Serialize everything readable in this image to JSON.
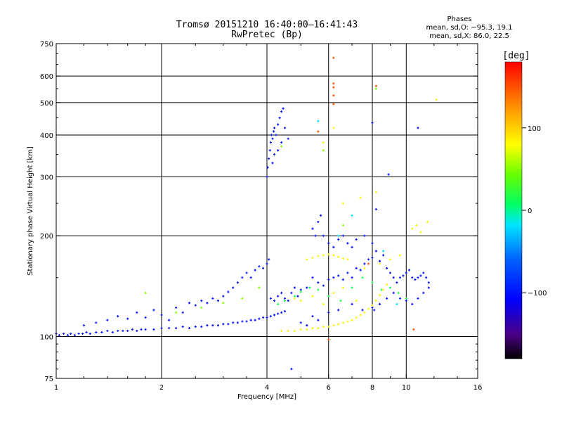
{
  "chart_data": {
    "type": "scatter",
    "title": "Tromsø 20151210 16:40:00–16:41:43",
    "subtitle": "RwPretec (Bp)",
    "xlabel": "Frequency [MHz]",
    "ylabel": "Stationary phase Virtual Height [km]",
    "x_scale": "log",
    "y_scale": "log",
    "xlim": [
      1,
      16
    ],
    "ylim": [
      75,
      750
    ],
    "x_ticks": [
      1,
      2,
      4,
      6,
      8,
      10,
      16
    ],
    "x_tick_labels": [
      "1",
      "2",
      "4",
      "6",
      "8",
      "10",
      "16"
    ],
    "y_ticks": [
      75,
      100,
      200,
      300,
      400,
      500,
      600,
      750
    ],
    "y_tick_labels": [
      "75",
      "100",
      "200",
      "300",
      "400",
      "500",
      "600",
      "750"
    ],
    "grid": true,
    "stats": {
      "header": "Phases",
      "line_o": "mean, sd,O: −95.3, 19.1",
      "line_x": "mean, sd,X: 86.0, 22.5"
    },
    "colorbar": {
      "unit": "[deg]",
      "ticks": [
        100,
        0,
        -100
      ],
      "tick_labels": [
        "100",
        "0",
        "−100"
      ],
      "range": [
        -180,
        180
      ]
    },
    "series": [
      {
        "phase_deg": -100,
        "points": [
          [
            1.0,
            102
          ],
          [
            1.02,
            101
          ],
          [
            1.05,
            102
          ],
          [
            1.08,
            101
          ],
          [
            1.1,
            102
          ],
          [
            1.13,
            101
          ],
          [
            1.16,
            102
          ],
          [
            1.19,
            102
          ],
          [
            1.22,
            103
          ],
          [
            1.25,
            102
          ],
          [
            1.3,
            103
          ],
          [
            1.35,
            103
          ],
          [
            1.4,
            104
          ],
          [
            1.45,
            103
          ],
          [
            1.5,
            104
          ],
          [
            1.55,
            104
          ],
          [
            1.6,
            104
          ],
          [
            1.65,
            105
          ],
          [
            1.7,
            104
          ],
          [
            1.75,
            105
          ],
          [
            1.8,
            105
          ],
          [
            1.9,
            105
          ],
          [
            2.0,
            106
          ],
          [
            2.1,
            106
          ],
          [
            2.2,
            106
          ],
          [
            2.3,
            107
          ],
          [
            2.4,
            106
          ],
          [
            2.5,
            107
          ],
          [
            2.6,
            107
          ],
          [
            2.7,
            108
          ],
          [
            2.8,
            108
          ],
          [
            2.9,
            108
          ],
          [
            3.0,
            109
          ],
          [
            3.1,
            109
          ],
          [
            3.2,
            110
          ],
          [
            3.3,
            110
          ],
          [
            3.4,
            111
          ],
          [
            3.5,
            111
          ],
          [
            3.6,
            112
          ],
          [
            3.7,
            112
          ],
          [
            3.8,
            113
          ],
          [
            3.9,
            114
          ],
          [
            4.0,
            114
          ],
          [
            4.1,
            115
          ],
          [
            4.2,
            116
          ],
          [
            4.3,
            117
          ],
          [
            4.4,
            118
          ],
          [
            4.5,
            119
          ],
          [
            1.2,
            108
          ],
          [
            1.3,
            110
          ],
          [
            1.4,
            112
          ],
          [
            1.5,
            115
          ],
          [
            1.6,
            113
          ],
          [
            1.7,
            118
          ],
          [
            1.8,
            114
          ],
          [
            1.9,
            120
          ],
          [
            2.0,
            116
          ],
          [
            2.1,
            112
          ],
          [
            2.2,
            122
          ],
          [
            2.3,
            118
          ],
          [
            2.4,
            126
          ],
          [
            2.5,
            124
          ],
          [
            2.6,
            128
          ],
          [
            2.7,
            126
          ],
          [
            2.8,
            130
          ],
          [
            2.9,
            128
          ],
          [
            3.0,
            132
          ],
          [
            3.1,
            136
          ],
          [
            3.2,
            140
          ],
          [
            3.3,
            145
          ],
          [
            3.4,
            150
          ],
          [
            3.5,
            155
          ],
          [
            3.6,
            150
          ],
          [
            3.7,
            158
          ],
          [
            3.8,
            162
          ],
          [
            3.9,
            160
          ],
          [
            4.0,
            165
          ],
          [
            4.05,
            170
          ],
          [
            4.0,
            300
          ],
          [
            4.02,
            320
          ],
          [
            4.05,
            340
          ],
          [
            4.08,
            360
          ],
          [
            4.1,
            380
          ],
          [
            4.12,
            400
          ],
          [
            4.15,
            390
          ],
          [
            4.18,
            410
          ],
          [
            4.2,
            420
          ],
          [
            4.25,
            400
          ],
          [
            4.3,
            430
          ],
          [
            4.35,
            450
          ],
          [
            4.4,
            470
          ],
          [
            4.45,
            480
          ],
          [
            4.5,
            420
          ],
          [
            4.4,
            380
          ],
          [
            4.3,
            360
          ],
          [
            4.2,
            350
          ],
          [
            4.15,
            330
          ],
          [
            4.6,
            390
          ],
          [
            4.1,
            130
          ],
          [
            4.2,
            128
          ],
          [
            4.3,
            132
          ],
          [
            4.4,
            135
          ],
          [
            4.5,
            130
          ],
          [
            4.6,
            128
          ],
          [
            4.7,
            135
          ],
          [
            4.8,
            140
          ],
          [
            4.9,
            132
          ],
          [
            5.0,
            138
          ],
          [
            5.2,
            140
          ],
          [
            5.4,
            150
          ],
          [
            5.6,
            145
          ],
          [
            5.8,
            142
          ],
          [
            6.0,
            148
          ],
          [
            6.2,
            150
          ],
          [
            6.4,
            152
          ],
          [
            6.6,
            148
          ],
          [
            6.8,
            155
          ],
          [
            7.0,
            150
          ],
          [
            7.2,
            160
          ],
          [
            7.4,
            158
          ],
          [
            7.6,
            165
          ],
          [
            7.8,
            170
          ],
          [
            8.0,
            172
          ],
          [
            8.2,
            180
          ],
          [
            8.4,
            168
          ],
          [
            8.6,
            175
          ],
          [
            8.8,
            160
          ],
          [
            9.0,
            155
          ],
          [
            9.2,
            150
          ],
          [
            9.4,
            145
          ],
          [
            9.6,
            150
          ],
          [
            9.8,
            152
          ],
          [
            10.0,
            155
          ],
          [
            10.2,
            158
          ],
          [
            10.4,
            150
          ],
          [
            10.6,
            148
          ],
          [
            10.8,
            150
          ],
          [
            11.0,
            152
          ],
          [
            11.2,
            155
          ],
          [
            11.4,
            150
          ],
          [
            11.6,
            145
          ],
          [
            5.4,
            210
          ],
          [
            5.5,
            200
          ],
          [
            5.6,
            220
          ],
          [
            5.7,
            230
          ],
          [
            5.8,
            200
          ],
          [
            6.0,
            190
          ],
          [
            6.2,
            185
          ],
          [
            6.4,
            195
          ],
          [
            6.6,
            200
          ],
          [
            6.8,
            190
          ],
          [
            7.0,
            185
          ],
          [
            7.2,
            195
          ],
          [
            7.6,
            200
          ],
          [
            8.0,
            190
          ],
          [
            8.1,
            120
          ],
          [
            8.4,
            125
          ],
          [
            8.8,
            130
          ],
          [
            9.2,
            135
          ],
          [
            9.6,
            130
          ],
          [
            10.0,
            128
          ],
          [
            10.4,
            125
          ],
          [
            10.8,
            130
          ],
          [
            11.2,
            135
          ],
          [
            11.6,
            140
          ],
          [
            5.0,
            110
          ],
          [
            5.2,
            108
          ],
          [
            5.4,
            115
          ],
          [
            5.6,
            112
          ],
          [
            6.0,
            118
          ],
          [
            6.4,
            120
          ],
          [
            7.0,
            125
          ],
          [
            7.5,
            120
          ],
          [
            8.0,
            122
          ],
          [
            8.0,
            435
          ],
          [
            10.8,
            420
          ],
          [
            8.9,
            305
          ],
          [
            8.2,
            240
          ],
          [
            4.7,
            80
          ]
        ]
      },
      {
        "phase_deg": 15,
        "points": [
          [
            4.3,
            125
          ],
          [
            4.5,
            128
          ],
          [
            4.8,
            132
          ],
          [
            5.0,
            136
          ],
          [
            5.3,
            140
          ],
          [
            5.6,
            138
          ],
          [
            6.0,
            132
          ],
          [
            6.5,
            128
          ],
          [
            7.0,
            140
          ],
          [
            7.5,
            150
          ],
          [
            8.0,
            145
          ],
          [
            8.5,
            138
          ],
          [
            9.0,
            140
          ],
          [
            9.5,
            135
          ],
          [
            10.0,
            130
          ]
        ]
      },
      {
        "phase_deg": 85,
        "points": [
          [
            4.4,
            104
          ],
          [
            4.6,
            104
          ],
          [
            4.8,
            104
          ],
          [
            5.0,
            105
          ],
          [
            5.2,
            105
          ],
          [
            5.4,
            106
          ],
          [
            5.6,
            106
          ],
          [
            5.8,
            107
          ],
          [
            6.0,
            107
          ],
          [
            6.2,
            108
          ],
          [
            6.4,
            109
          ],
          [
            6.6,
            110
          ],
          [
            6.8,
            111
          ],
          [
            7.0,
            112
          ],
          [
            7.2,
            114
          ],
          [
            7.4,
            116
          ],
          [
            7.6,
            118
          ],
          [
            7.8,
            121
          ],
          [
            8.0,
            124
          ],
          [
            8.2,
            128
          ],
          [
            8.4,
            133
          ],
          [
            8.6,
            138
          ],
          [
            8.8,
            143
          ],
          [
            5.2,
            170
          ],
          [
            5.4,
            172
          ],
          [
            5.6,
            174
          ],
          [
            5.8,
            175
          ],
          [
            6.0,
            176
          ],
          [
            6.2,
            175
          ],
          [
            6.4,
            173
          ],
          [
            6.6,
            171
          ],
          [
            6.8,
            170
          ],
          [
            4.8,
            130
          ],
          [
            5.0,
            128
          ],
          [
            5.4,
            132
          ],
          [
            5.8,
            125
          ],
          [
            6.2,
            135
          ],
          [
            6.6,
            140
          ],
          [
            7.2,
            128
          ],
          [
            7.6,
            160
          ],
          [
            8.4,
            165
          ],
          [
            9.0,
            170
          ],
          [
            9.6,
            175
          ],
          [
            10.4,
            210
          ],
          [
            10.7,
            215
          ],
          [
            11.0,
            205
          ],
          [
            11.5,
            220
          ],
          [
            12.2,
            510
          ],
          [
            6.2,
            420
          ],
          [
            5.8,
            380
          ],
          [
            7.4,
            260
          ],
          [
            6.6,
            250
          ],
          [
            8.2,
            270
          ]
        ]
      },
      {
        "phase_deg": 150,
        "points": [
          [
            6.2,
            680
          ],
          [
            6.2,
            570
          ],
          [
            6.2,
            555
          ],
          [
            6.2,
            525
          ],
          [
            6.2,
            495
          ],
          [
            8.2,
            560
          ],
          [
            5.6,
            410
          ],
          [
            7.8,
            165
          ],
          [
            10.5,
            105
          ],
          [
            6.0,
            98
          ]
        ]
      },
      {
        "phase_deg": 50,
        "points": [
          [
            1.8,
            135
          ],
          [
            2.2,
            118
          ],
          [
            2.6,
            122
          ],
          [
            3.0,
            126
          ],
          [
            3.4,
            130
          ],
          [
            3.8,
            140
          ],
          [
            4.4,
            370
          ],
          [
            5.8,
            360
          ],
          [
            8.2,
            550
          ],
          [
            6.6,
            215
          ]
        ]
      },
      {
        "phase_deg": -20,
        "points": [
          [
            5.6,
            440
          ],
          [
            6.4,
            200
          ],
          [
            8.6,
            180
          ],
          [
            9.4,
            125
          ],
          [
            7.0,
            230
          ]
        ]
      }
    ]
  }
}
